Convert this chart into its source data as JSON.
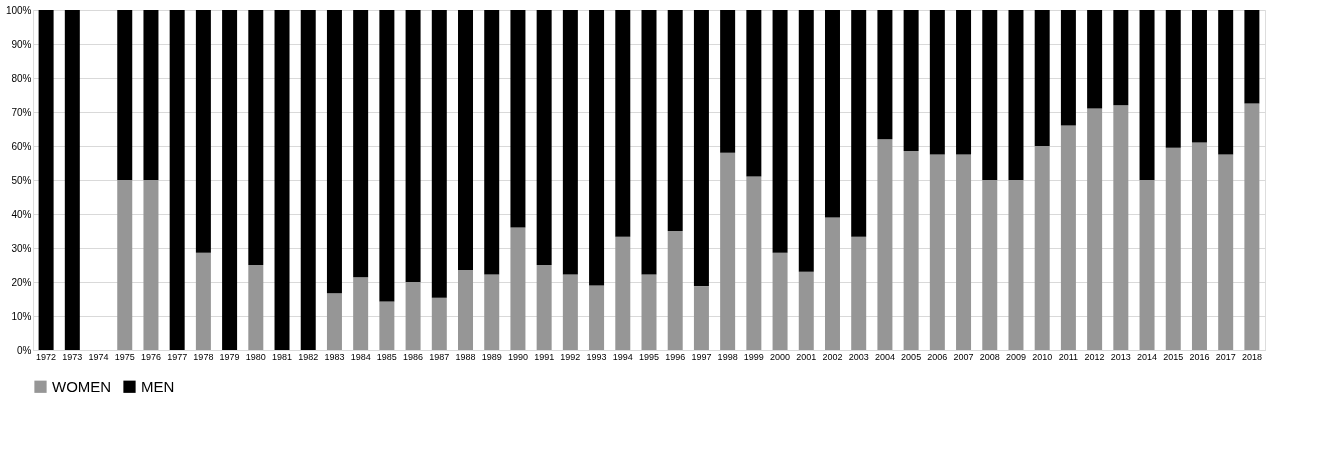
{
  "chart_data": {
    "type": "bar",
    "stacked": true,
    "categories": [
      "1972",
      "1973",
      "1974",
      "1975",
      "1976",
      "1977",
      "1978",
      "1979",
      "1980",
      "1981",
      "1982",
      "1983",
      "1984",
      "1985",
      "1986",
      "1987",
      "1988",
      "1989",
      "1990",
      "1991",
      "1992",
      "1993",
      "1994",
      "1995",
      "1996",
      "1997",
      "1998",
      "1999",
      "2000",
      "2001",
      "2002",
      "2003",
      "2004",
      "2005",
      "2006",
      "2007",
      "2008",
      "2009",
      "2010",
      "2011",
      "2012",
      "2013",
      "2014",
      "2015",
      "2016",
      "2017",
      "2018"
    ],
    "series": [
      {
        "name": "WOMEN",
        "color": "#969696",
        "values": [
          0,
          0,
          null,
          50,
          50,
          0,
          28.6,
          0,
          25,
          0,
          0,
          16.7,
          21.4,
          14.3,
          20,
          15.4,
          23.5,
          22.2,
          36,
          25,
          22.2,
          19,
          33.3,
          22.2,
          35,
          18.8,
          58,
          51,
          28.6,
          23,
          39,
          33.3,
          62,
          58.5,
          57.5,
          57.5,
          50,
          50,
          60,
          66,
          71,
          72,
          50,
          59.5,
          61,
          57.5,
          72.5
        ]
      },
      {
        "name": "MEN",
        "color": "#000000",
        "values": [
          100,
          100,
          null,
          50,
          50,
          100,
          71.4,
          100,
          75,
          100,
          100,
          83.3,
          78.6,
          85.7,
          80,
          84.6,
          76.5,
          77.8,
          64,
          75,
          77.8,
          81,
          66.7,
          77.8,
          65,
          81.2,
          42,
          49,
          71.4,
          77,
          61,
          66.7,
          38,
          41.5,
          42.5,
          42.5,
          50,
          50,
          40,
          34,
          29,
          28,
          50,
          40.5,
          39,
          42.5,
          27.5
        ]
      }
    ],
    "ylim": [
      0,
      100
    ],
    "yticks": [
      {
        "value": 0,
        "label": "0%"
      },
      {
        "value": 10,
        "label": "10%"
      },
      {
        "value": 20,
        "label": "20%"
      },
      {
        "value": 30,
        "label": "30%"
      },
      {
        "value": 40,
        "label": "40%"
      },
      {
        "value": 50,
        "label": "50%"
      },
      {
        "value": 60,
        "label": "60%"
      },
      {
        "value": 70,
        "label": "70%"
      },
      {
        "value": 80,
        "label": "80%"
      },
      {
        "value": 90,
        "label": "90%"
      },
      {
        "value": 100,
        "label": "100%"
      }
    ],
    "grid": "y",
    "legend": "bottom"
  }
}
